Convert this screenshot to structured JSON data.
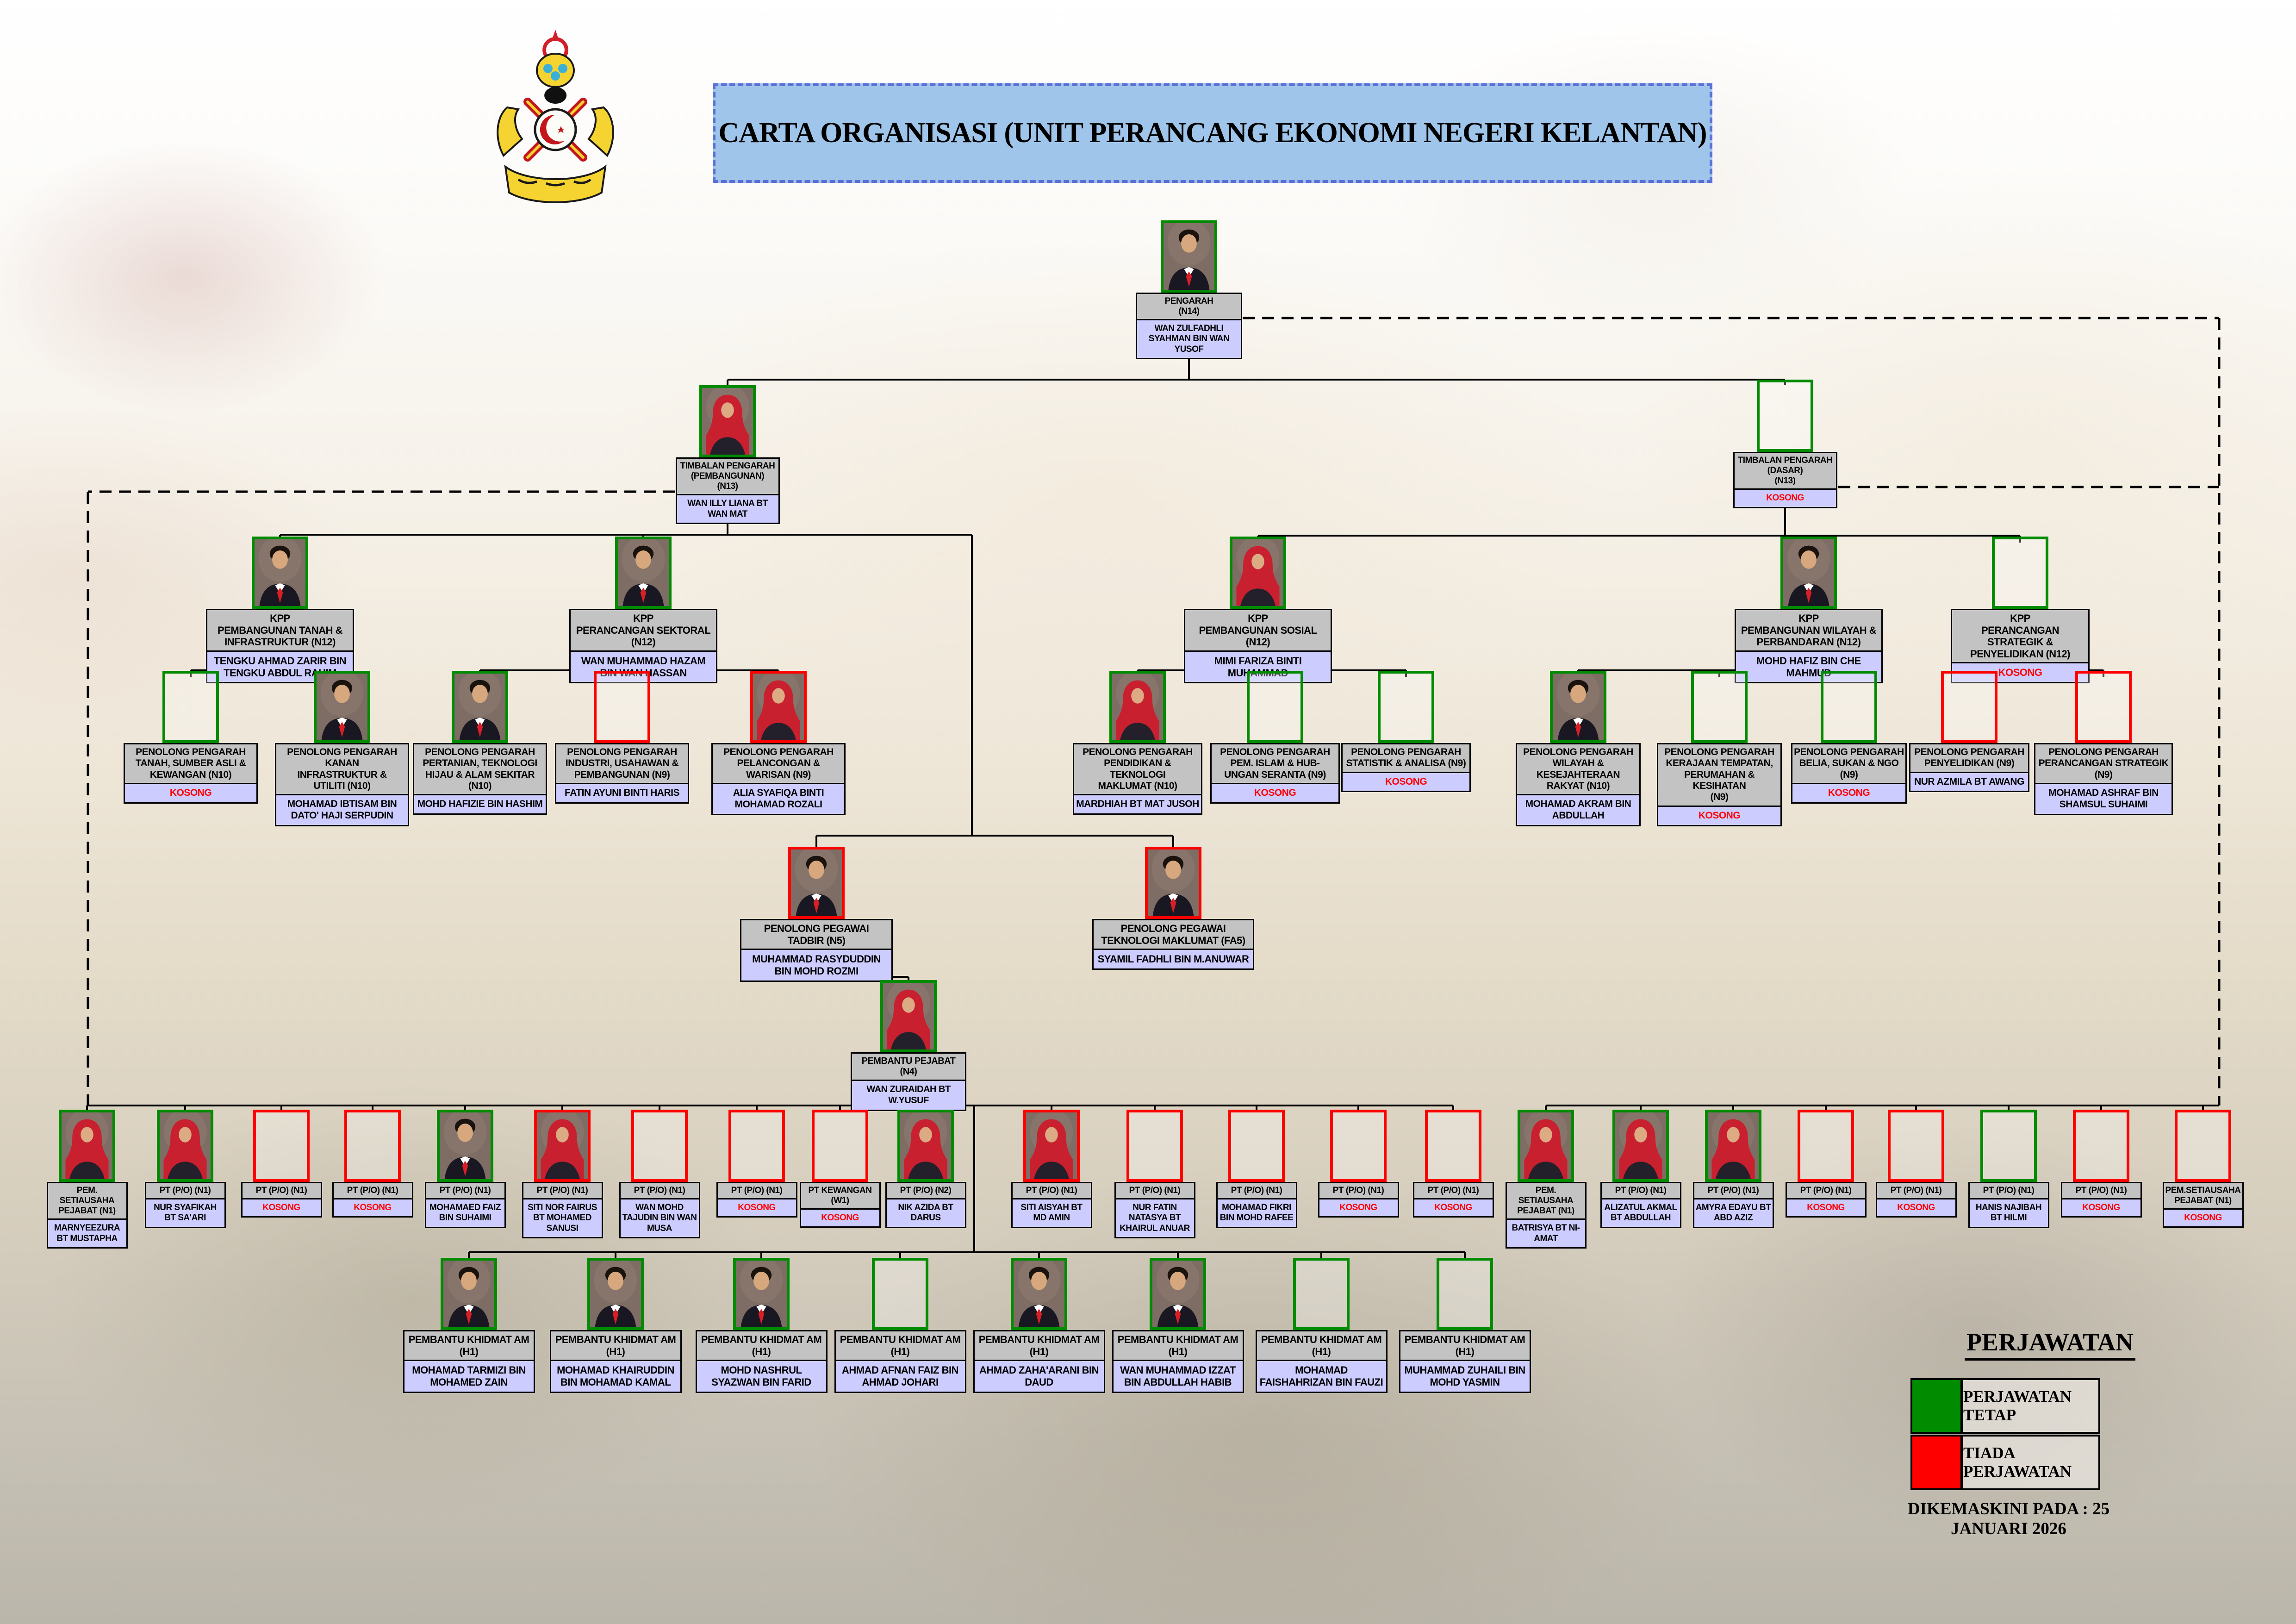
{
  "banner": {
    "title": "CARTA ORGANISASI (UNIT PERANCANG EKONOMI NEGERI KELANTAN)"
  },
  "crest_icon": "kelantan-state-crest",
  "colors": {
    "tetap": "#008b00",
    "tiada": "#fe0000",
    "title_bg": "#c3c3c3",
    "name_bg": "#ccccff",
    "banner_bg": "#9fc5ea"
  },
  "legend": {
    "heading": "PERJAWATAN",
    "items": [
      {
        "color": "#008b00",
        "label": "PERJAWATAN TETAP"
      },
      {
        "color": "#fe0000",
        "label": "TIADA PERJAWATAN"
      }
    ],
    "updated": "DIKEMASKINI PADA : 25 JANUARI 2026"
  },
  "nodes": [
    {
      "id": "pengarah",
      "title": "PENGARAH\n(N14)",
      "name": "WAN ZULFADHLI SYAHMAN BIN WAN YUSOF",
      "vacant": false,
      "status": "tetap",
      "photo": "male"
    },
    {
      "id": "tp-pembangunan",
      "title": "TIMBALAN PENGARAH\n(PEMBANGUNAN)\n(N13)",
      "name": "WAN ILLY LIANA BT WAN MAT",
      "vacant": false,
      "status": "tetap",
      "photo": "female"
    },
    {
      "id": "tp-dasar",
      "title": "TIMBALAN PENGARAH\n(DASAR)\n(N13)",
      "name": "KOSONG",
      "vacant": true,
      "status": "tetap",
      "photo": null
    },
    {
      "id": "kpp-tanah-infrastruktur",
      "title": "KPP\nPEMBANGUNAN TANAH &\nINFRASTRUKTUR (N12)",
      "name": "TENGKU AHMAD ZARIR BIN TENGKU ABDUL RAHIM",
      "vacant": false,
      "status": "tetap",
      "photo": "male"
    },
    {
      "id": "kpp-perancangan-sektoral",
      "title": "KPP\nPERANCANGAN SEKTORAL (N12)",
      "name": "WAN MUHAMMAD HAZAM BIN WAN HASSAN",
      "vacant": false,
      "status": "tetap",
      "photo": "male"
    },
    {
      "id": "kpp-pembangunan-sosial",
      "title": "KPP\nPEMBANGUNAN SOSIAL (N12)",
      "name": "MIMI FARIZA BINTI MUHAMMAD",
      "vacant": false,
      "status": "tetap",
      "photo": "female"
    },
    {
      "id": "kpp-wilayah-perbandaran",
      "title": "KPP\nPEMBANGUNAN WILAYAH &\nPERBANDARAN (N12)",
      "name": "MOHD HAFIZ BIN CHE MAHMUD",
      "vacant": false,
      "status": "tetap",
      "photo": "male"
    },
    {
      "id": "kpp-strategik-penyelidikan",
      "title": "KPP\nPERANCANGAN STRATEGIK &\nPENYELIDIKAN (N12)",
      "name": "KOSONG",
      "vacant": true,
      "status": "tetap",
      "photo": null
    },
    {
      "id": "pp-tanah-sumber-asli",
      "title": "PENOLONG PENGARAH\nTANAH, SUMBER ASLI &\nKEWANGAN (N10)",
      "name": "KOSONG",
      "vacant": true,
      "status": "tetap",
      "photo": null
    },
    {
      "id": "pp-kanan-infrastruktur",
      "title": "PENOLONG PENGARAH KANAN\nINFRASTRUKTUR &\nUTILITI (N10)",
      "name": "MOHAMAD IBTISAM BIN DATO' HAJI SERPUDIN",
      "vacant": false,
      "status": "tetap",
      "photo": "male"
    },
    {
      "id": "pp-pertanian-teknologi-hijau",
      "title": "PENOLONG PENGARAH\nPERTANIAN, TEKNOLOGI\nHIJAU & ALAM SEKITAR (N10)",
      "name": "MOHD HAFIZIE BIN HASHIM",
      "vacant": false,
      "status": "tetap",
      "photo": "male"
    },
    {
      "id": "pp-industri-usahawan",
      "title": "PENOLONG PENGARAH\nINDUSTRI, USAHAWAN  &\nPEMBANGUNAN (N9)",
      "name": "FATIN AYUNI BINTI HARIS",
      "vacant": false,
      "status": "tiada",
      "photo": null
    },
    {
      "id": "pp-pelancongan-warisan",
      "title": "PENOLONG PENGARAH\nPELANCONGAN &\nWARISAN (N9)",
      "name": "ALIA SYAFIQA BINTI MOHAMAD ROZALI",
      "vacant": false,
      "status": "tiada",
      "photo": "female"
    },
    {
      "id": "pp-pendidikan-teknologi-maklumat",
      "title": "PENOLONG PENGARAH\nPENDIDIKAN & TEKNOLOGI\nMAKLUMAT (N10)",
      "name": "MARDHIAH BT MAT JUSOH",
      "vacant": false,
      "status": "tetap",
      "photo": "female"
    },
    {
      "id": "pp-pem-islam-seranta",
      "title": "PENOLONG PENGARAH\nPEM. ISLAM & HUB-\nUNGAN SERANTA (N9)",
      "name": "KOSONG",
      "vacant": true,
      "status": "tetap",
      "photo": null
    },
    {
      "id": "pp-statistik-analisa",
      "title": "PENOLONG PENGARAH\nSTATISTIK & ANALISA (N9)",
      "name": "KOSONG",
      "vacant": true,
      "status": "tetap",
      "photo": null
    },
    {
      "id": "pp-wilayah-kesejahteraan",
      "title": "PENOLONG PENGARAH\nWILAYAH & KESEJAHTERAAN\nRAKYAT (N10)",
      "name": "MOHAMAD AKRAM BIN ABDULLAH",
      "vacant": false,
      "status": "tetap",
      "photo": "male"
    },
    {
      "id": "pp-kerajaan-tempatan",
      "title": "PENOLONG PENGARAH\nKERAJAAN TEMPATAN,\nPERUMAHAN & KESIHATAN\n(N9)",
      "name": "KOSONG",
      "vacant": true,
      "status": "tetap",
      "photo": null
    },
    {
      "id": "pp-belia-sukan-ngo",
      "title": "PENOLONG PENGARAH\nBELIA, SUKAN & NGO\n(N9)",
      "name": "KOSONG",
      "vacant": true,
      "status": "tetap",
      "photo": null
    },
    {
      "id": "pp-penyelidikan",
      "title": "PENOLONG PENGARAH\nPENYELIDIKAN (N9)",
      "name": "NUR AZMILA BT AWANG",
      "vacant": false,
      "status": "tiada",
      "photo": null
    },
    {
      "id": "pp-perancangan-strategik",
      "title": "PENOLONG PENGARAH\nPERANCANGAN STRATEGIK (N9)",
      "name": "MOHAMAD ASHRAF BIN SHAMSUL SUHAIMI",
      "vacant": false,
      "status": "tiada",
      "photo": null
    },
    {
      "id": "penolong-pegawai-tadbir",
      "title": "PENOLONG PEGAWAI\nTADBIR (N5)",
      "name": "MUHAMMAD RASYDUDDIN BIN MOHD ROZMI",
      "vacant": false,
      "status": "tiada",
      "photo": "male"
    },
    {
      "id": "penolong-pegawai-teknologi-maklumat",
      "title": "PENOLONG PEGAWAI\nTEKNOLOGI MAKLUMAT (FA5)",
      "name": "SYAMIL FADHLI BIN M.ANUWAR",
      "vacant": false,
      "status": "tiada",
      "photo": "male"
    },
    {
      "id": "pembantu-pejabat",
      "title": "PEMBANTU PEJABAT (N4)",
      "name": "WAN ZURAIDAH BT W.YUSUF",
      "vacant": false,
      "status": "tetap",
      "photo": "female"
    },
    {
      "id": "pem-setiausaha-pejabat-1",
      "title": "PEM. SETIAUSAHA\nPEJABAT (N1)",
      "name": "MARNYEEZURA BT MUSTAPHA",
      "vacant": false,
      "status": "tetap",
      "photo": "female"
    },
    {
      "id": "pt-po-1",
      "title": "PT (P/O) (N1)",
      "name": "NUR SYAFIKAH BT SA'ARI",
      "vacant": false,
      "status": "tetap",
      "photo": "female"
    },
    {
      "id": "pt-po-2",
      "title": "PT (P/O) (N1)",
      "name": "KOSONG",
      "vacant": true,
      "status": "tiada",
      "photo": null
    },
    {
      "id": "pt-po-3",
      "title": "PT (P/O) (N1)",
      "name": "KOSONG",
      "vacant": true,
      "status": "tiada",
      "photo": null
    },
    {
      "id": "pt-po-4",
      "title": "PT (P/O) (N1)",
      "name": "MOHAMAED FAIZ BIN SUHAIMI",
      "vacant": false,
      "status": "tetap",
      "photo": "male"
    },
    {
      "id": "pt-po-5",
      "title": "PT (P/O) (N1)",
      "name": "SITI NOR FAIRUS BT MOHAMED SANUSI",
      "vacant": false,
      "status": "tiada",
      "photo": "female"
    },
    {
      "id": "pt-po-6",
      "title": "PT (P/O) (N1)",
      "name": "WAN MOHD TAJUDIN BIN WAN MUSA",
      "vacant": false,
      "status": "tiada",
      "photo": null
    },
    {
      "id": "pt-po-7",
      "title": "PT (P/O) (N1)",
      "name": "KOSONG",
      "vacant": true,
      "status": "tiada",
      "photo": null
    },
    {
      "id": "pt-kewangan",
      "title": "PT KEWANGAN (W1)",
      "name": "KOSONG",
      "vacant": true,
      "status": "tiada",
      "photo": null
    },
    {
      "id": "pt-po-n2",
      "title": "PT (P/O) (N2)",
      "name": "NIK AZIDA BT DARUS",
      "vacant": false,
      "status": "tetap",
      "photo": "female"
    },
    {
      "id": "pt-po-8",
      "title": "PT (P/O) (N1)",
      "name": "SITI AISYAH BT MD AMIN",
      "vacant": false,
      "status": "tiada",
      "photo": "female"
    },
    {
      "id": "pt-po-9",
      "title": "PT (P/O) (N1)",
      "name": "NUR FATIN NATASYA BT KHAIRUL ANUAR",
      "vacant": false,
      "status": "tiada",
      "photo": null
    },
    {
      "id": "pt-po-10",
      "title": "PT (P/O) (N1)",
      "name": "MOHAMAD FIKRI BIN MOHD RAFEE",
      "vacant": false,
      "status": "tiada",
      "photo": null
    },
    {
      "id": "pt-po-11",
      "title": "PT (P/O) (N1)",
      "name": "KOSONG",
      "vacant": true,
      "status": "tiada",
      "photo": null
    },
    {
      "id": "pt-po-12",
      "title": "PT (P/O) (N1)",
      "name": "KOSONG",
      "vacant": true,
      "status": "tiada",
      "photo": null
    },
    {
      "id": "pem-setiausaha-pejabat-2",
      "title": "PEM. SETIAUSAHA\nPEJABAT (N1)",
      "name": "BATRISYA BT NI-AMAT",
      "vacant": false,
      "status": "tetap",
      "photo": "female"
    },
    {
      "id": "pt-po-13",
      "title": "PT (P/O) (N1)",
      "name": "ALIZATUL AKMAL BT ABDULLAH",
      "vacant": false,
      "status": "tetap",
      "photo": "female"
    },
    {
      "id": "pt-po-14",
      "title": "PT (P/O) (N1)",
      "name": "AMYRA EDAYU BT ABD AZIZ",
      "vacant": false,
      "status": "tetap",
      "photo": "female"
    },
    {
      "id": "pt-po-15",
      "title": "PT (P/O) (N1)",
      "name": "KOSONG",
      "vacant": true,
      "status": "tiada",
      "photo": null
    },
    {
      "id": "pt-po-16",
      "title": "PT (P/O) (N1)",
      "name": "KOSONG",
      "vacant": true,
      "status": "tiada",
      "photo": null
    },
    {
      "id": "pt-po-17",
      "title": "PT (P/O) (N1)",
      "name": "HANIS NAJIBAH BT HILMI",
      "vacant": false,
      "status": "tetap",
      "photo": null
    },
    {
      "id": "pt-po-18",
      "title": "PT (P/O) (N1)",
      "name": "KOSONG",
      "vacant": true,
      "status": "tiada",
      "photo": null
    },
    {
      "id": "pem-setiausaha-pejabat-3",
      "title": "PEM.SETIAUSAHA\nPEJABAT (N1)",
      "name": "KOSONG",
      "vacant": true,
      "status": "tiada",
      "photo": null
    },
    {
      "id": "pka-1",
      "title": "PEMBANTU KHIDMAT AM (H1)",
      "name": "MOHAMAD TARMIZI BIN MOHAMED ZAIN",
      "vacant": false,
      "status": "tetap",
      "photo": "male"
    },
    {
      "id": "pka-2",
      "title": "PEMBANTU KHIDMAT AM (H1)",
      "name": "MOHAMAD KHAIRUDDIN BIN MOHAMAD KAMAL",
      "vacant": false,
      "status": "tetap",
      "photo": "male"
    },
    {
      "id": "pka-3",
      "title": "PEMBANTU KHIDMAT AM (H1)",
      "name": "MOHD NASHRUL SYAZWAN BIN FARID",
      "vacant": false,
      "status": "tetap",
      "photo": "male"
    },
    {
      "id": "pka-4",
      "title": "PEMBANTU KHIDMAT AM (H1)",
      "name": "AHMAD AFNAN FAIZ BIN AHMAD JOHARI",
      "vacant": false,
      "status": "tetap",
      "photo": null
    },
    {
      "id": "pka-5",
      "title": "PEMBANTU KHIDMAT AM (H1)",
      "name": "AHMAD ZAHA'ARANI BIN DAUD",
      "vacant": false,
      "status": "tetap",
      "photo": "male"
    },
    {
      "id": "pka-6",
      "title": "PEMBANTU KHIDMAT AM (H1)",
      "name": "WAN MUHAMMAD IZZAT BIN ABDULLAH HABIB",
      "vacant": false,
      "status": "tetap",
      "photo": "male"
    },
    {
      "id": "pka-7",
      "title": "PEMBANTU KHIDMAT AM (H1)",
      "name": "MOHAMAD FAISHAHRIZAN BIN FAUZI",
      "vacant": false,
      "status": "tetap",
      "photo": null
    },
    {
      "id": "pka-8",
      "title": "PEMBANTU KHIDMAT AM (H1)",
      "name": "MUHAMMAD ZUHAILI BIN MOHD YASMIN",
      "vacant": false,
      "status": "tetap",
      "photo": null
    }
  ]
}
